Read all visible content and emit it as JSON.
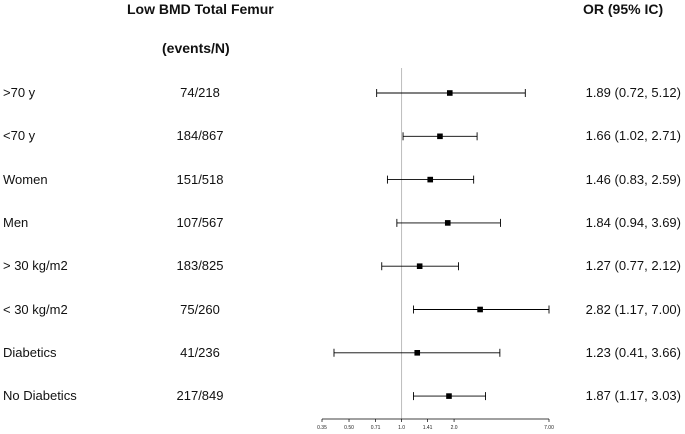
{
  "headers": {
    "title": "Low BMD Total Femur",
    "events": "(events/N)",
    "or": "OR (95% IC)"
  },
  "chart_data": {
    "type": "forest",
    "scale": "log",
    "reference_line": 1.0,
    "xlim": [
      0.35,
      7.0
    ],
    "x_ticks": [
      0.35,
      0.5,
      0.71,
      1.0,
      1.41,
      2.0,
      7.0
    ],
    "x_tick_labels": [
      "0.35",
      "0.50",
      "0.71",
      "1.0",
      "1.41",
      "2.0",
      "7.00"
    ],
    "rows": [
      {
        "label": ">70 y",
        "events": "74/218",
        "or_text": "1.89 (0.72, 5.12)",
        "or": 1.89,
        "lo": 0.72,
        "hi": 5.12
      },
      {
        "label": "<70 y",
        "events": "184/867",
        "or_text": "1.66 (1.02, 2.71)",
        "or": 1.66,
        "lo": 1.02,
        "hi": 2.71
      },
      {
        "label": "Women",
        "events": "151/518",
        "or_text": "1.46 (0.83, 2.59)",
        "or": 1.46,
        "lo": 0.83,
        "hi": 2.59
      },
      {
        "label": "Men",
        "events": "107/567",
        "or_text": "1.84 (0.94, 3.69)",
        "or": 1.84,
        "lo": 0.94,
        "hi": 3.69
      },
      {
        "label": "> 30 kg/m2",
        "events": "183/825",
        "or_text": "1.27 (0.77, 2.12)",
        "or": 1.27,
        "lo": 0.77,
        "hi": 2.12
      },
      {
        "label": "< 30 kg/m2",
        "events": "75/260",
        "or_text": "2.82 (1.17, 7.00)",
        "or": 2.82,
        "lo": 1.17,
        "hi": 7.0
      },
      {
        "label": "Diabetics",
        "events": "41/236",
        "or_text": "1.23 (0.41, 3.66)",
        "or": 1.23,
        "lo": 0.41,
        "hi": 3.66
      },
      {
        "label": "No Diabetics",
        "events": "217/849",
        "or_text": "1.87 (1.17, 3.03)",
        "or": 1.87,
        "lo": 1.17,
        "hi": 3.03
      }
    ]
  }
}
